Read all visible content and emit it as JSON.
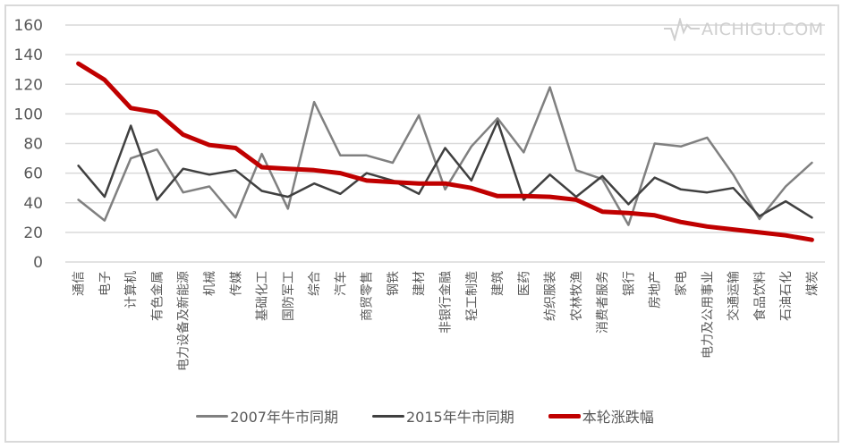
{
  "watermark": {
    "text": "AICHIGU.COM",
    "icon": "heartbeat-logo-icon"
  },
  "legend": [
    {
      "label": "2007年牛市同期",
      "color": "#808080"
    },
    {
      "label": "2015年牛市同期",
      "color": "#404040"
    },
    {
      "label": "本轮涨跌幅",
      "color": "#c00000"
    }
  ],
  "chart_data": {
    "type": "line",
    "title": "",
    "xlabel": "",
    "ylabel": "",
    "ylim": [
      0,
      160
    ],
    "yticks": [
      0,
      20,
      40,
      60,
      80,
      100,
      120,
      140,
      160
    ],
    "grid": true,
    "legend_position": "bottom",
    "categories": [
      "通信",
      "电子",
      "计算机",
      "有色金属",
      "电力设备及新能源",
      "机械",
      "传媒",
      "基础化工",
      "国防军工",
      "综合",
      "汽车",
      "商贸零售",
      "钢铁",
      "建材",
      "非银行金融",
      "轻工制造",
      "建筑",
      "医药",
      "纺织服装",
      "农林牧渔",
      "消费者服务",
      "银行",
      "房地产",
      "家电",
      "电力及公用事业",
      "交通运输",
      "食品饮料",
      "石油石化",
      "煤炭"
    ],
    "series": [
      {
        "name": "2007年牛市同期",
        "color": "#808080",
        "width": 2.5,
        "values": [
          42,
          28,
          70,
          76,
          47,
          51,
          30,
          73,
          36,
          108,
          72,
          72,
          67,
          99,
          49,
          78,
          97,
          74,
          118,
          62,
          56,
          25,
          80,
          78,
          84,
          59,
          29,
          51,
          67
        ]
      },
      {
        "name": "2015年牛市同期",
        "color": "#404040",
        "width": 2.5,
        "values": [
          65,
          44,
          92,
          42,
          63,
          59,
          62,
          48,
          44,
          53,
          46,
          60,
          55,
          46,
          77,
          55,
          95,
          42,
          59,
          44,
          58,
          39,
          57,
          49,
          47,
          50,
          31,
          41,
          30
        ]
      },
      {
        "name": "本轮涨跌幅",
        "color": "#c00000",
        "width": 5,
        "values": [
          134,
          123,
          104,
          101,
          86,
          79,
          77,
          64,
          63,
          62,
          60,
          55,
          54,
          53,
          53,
          50,
          44.5,
          44.5,
          44,
          42,
          34,
          33,
          31.5,
          27,
          24,
          22,
          20,
          18,
          15
        ]
      }
    ]
  }
}
